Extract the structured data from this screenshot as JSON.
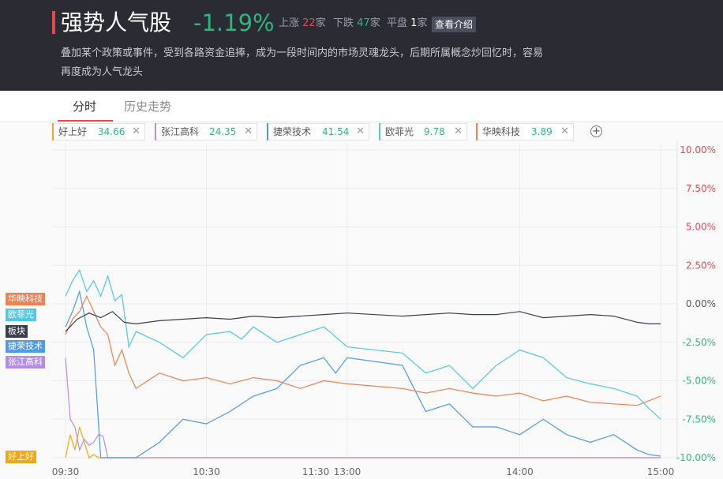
{
  "header": {
    "title": "强势人气股",
    "change": "-1.19%",
    "up_label": "上涨",
    "up_count": "22",
    "down_label": "下跌",
    "down_count": "47",
    "flat_label": "平盘",
    "flat_count": "1",
    "unit": "家",
    "intro_button": "查看介绍",
    "description": "叠加某个政策或事件，受到各路资金追捧，成为一段时间内的市场灵魂龙头，后期所属概念炒回忆时，容易再度成为人气龙头"
  },
  "tabs": [
    {
      "label": "分时",
      "active": true
    },
    {
      "label": "历史走势",
      "active": false
    }
  ],
  "chips": [
    {
      "name": "好上好",
      "value": "34.66",
      "color": "#f2a516"
    },
    {
      "name": "张江高科",
      "value": "24.35",
      "color": "#b48ee6"
    },
    {
      "name": "捷荣技术",
      "value": "41.54",
      "color": "#4a9be8"
    },
    {
      "name": "欧菲光",
      "value": "9.78",
      "color": "#4dc8e6"
    },
    {
      "name": "华映科技",
      "value": "3.89",
      "color": "#ee8051"
    }
  ],
  "add_icon": "plus-circle-icon",
  "close_icon": "close-icon",
  "chart_data": {
    "type": "line",
    "x_ticks": [
      "09:30",
      "10:30",
      "11:30",
      "13:00",
      "14:00",
      "15:00"
    ],
    "y_ticks": [
      "10.00%",
      "7.50%",
      "5.00%",
      "2.50%",
      "0.00%",
      "-2.50%",
      "-5.00%",
      "-7.50%",
      "-10.00%"
    ],
    "ylim": [
      -10,
      10
    ],
    "y_positive_color": "#e5484d",
    "y_negative_color": "#2fb67f",
    "legend_tags": [
      {
        "label": "华映科技",
        "color": "#ee8051",
        "y": 0.0
      },
      {
        "label": "欧菲光",
        "color": "#4dc8e6",
        "y": -1.0
      },
      {
        "label": "板块",
        "color": "#3a3f4b",
        "y": -2.0
      },
      {
        "label": "捷荣技术",
        "color": "#4a9be8",
        "y": -3.0
      },
      {
        "label": "张江高科",
        "color": "#b48ee6",
        "y": -4.0
      },
      {
        "label": "好上好",
        "color": "#f2a516",
        "y": -10.0
      }
    ],
    "series": [
      {
        "name": "板块",
        "color": "#3a3f4b",
        "x": [
          0,
          5,
          10,
          15,
          20,
          25,
          30,
          40,
          50,
          60,
          70,
          80,
          90,
          100,
          110,
          120,
          130,
          140,
          150,
          160,
          170,
          180,
          190,
          200,
          210,
          220,
          230,
          235,
          240
        ],
        "y": [
          -1.8,
          -1.0,
          -0.6,
          -0.9,
          -0.5,
          -1.2,
          -1.3,
          -1.1,
          -1.0,
          -0.9,
          -1.0,
          -0.8,
          -0.9,
          -0.8,
          -0.7,
          -0.6,
          -0.8,
          -0.7,
          -0.6,
          -0.7,
          -0.7,
          -0.5,
          -0.9,
          -0.8,
          -0.7,
          -0.8,
          -1.2,
          -1.3,
          -1.3
        ]
      },
      {
        "name": "欧菲光",
        "color": "#4dc8e6",
        "x": [
          0,
          3,
          6,
          9,
          12,
          15,
          18,
          21,
          24,
          27,
          30,
          40,
          50,
          60,
          70,
          75,
          80,
          90,
          100,
          110,
          120,
          130,
          140,
          150,
          160,
          170,
          180,
          190,
          200,
          210,
          220,
          230,
          235,
          240
        ],
        "y": [
          0.5,
          1.5,
          2.2,
          0.8,
          1.5,
          0.5,
          1.8,
          0.2,
          0.6,
          -2.8,
          -1.8,
          -2.5,
          -3.5,
          -2.0,
          -1.8,
          -2.3,
          -1.5,
          -2.5,
          -2.0,
          -1.5,
          -2.8,
          -3.2,
          -4.5,
          -4.0,
          -5.5,
          -4.0,
          -3.0,
          -3.5,
          -4.8,
          -5.2,
          -5.5,
          -6.0,
          -6.8,
          -7.5
        ]
      },
      {
        "name": "华映科技",
        "color": "#ee8051",
        "x": [
          0,
          3,
          6,
          9,
          12,
          15,
          18,
          21,
          24,
          27,
          30,
          40,
          50,
          60,
          70,
          80,
          90,
          100,
          110,
          120,
          130,
          140,
          150,
          160,
          170,
          180,
          190,
          200,
          210,
          220,
          230,
          240
        ],
        "y": [
          -2.0,
          -1.0,
          -0.5,
          0.5,
          -0.5,
          -1.5,
          -2.0,
          -4.0,
          -3.0,
          -4.5,
          -5.5,
          -4.5,
          -5.0,
          -4.8,
          -5.2,
          -4.8,
          -5.0,
          -5.5,
          -5.0,
          -5.2,
          -5.5,
          -5.8,
          -5.5,
          -5.8,
          -6.0,
          -5.8,
          -6.3,
          -6.0,
          -6.4,
          -6.5,
          -6.6,
          -6.0
        ]
      },
      {
        "name": "捷荣技术",
        "color": "#4a9be8",
        "x": [
          0,
          3,
          6,
          9,
          12,
          15,
          20,
          25,
          30,
          40,
          50,
          60,
          70,
          80,
          90,
          100,
          110,
          115,
          120,
          130,
          135,
          140,
          150,
          160,
          170,
          180,
          190,
          200,
          210,
          220,
          230,
          235,
          240
        ],
        "y": [
          -1.5,
          -0.5,
          0.8,
          -1.5,
          -3.0,
          -10.0,
          -10.0,
          -10.0,
          -10.0,
          -9.0,
          -7.5,
          -7.8,
          -7.0,
          -6.0,
          -5.5,
          -4.0,
          -3.5,
          -4.5,
          -3.5,
          -4.0,
          -5.5,
          -7.0,
          -6.5,
          -8.0,
          -8.0,
          -8.5,
          -7.5,
          -8.5,
          -9.0,
          -8.5,
          -9.5,
          -9.8,
          -9.9
        ]
      },
      {
        "name": "张江高科",
        "color": "#b48ee6",
        "x": [
          0,
          2,
          4,
          6,
          8,
          10,
          12,
          14,
          16,
          18,
          20,
          30,
          240
        ],
        "y": [
          -3.5,
          -7.5,
          -8.0,
          -9.5,
          -8.8,
          -9.2,
          -9.0,
          -8.5,
          -8.6,
          -10.0,
          -10.0,
          -10.0,
          -10.0
        ]
      },
      {
        "name": "好上好",
        "color": "#f2a516",
        "x": [
          0,
          2,
          4,
          6,
          8,
          10,
          12,
          14,
          16,
          18,
          20,
          30,
          240
        ],
        "y": [
          -10.0,
          -8.5,
          -9.5,
          -8.0,
          -9.0,
          -10.0,
          -9.8,
          -10.0,
          -10.0,
          -10.0,
          -10.0,
          -10.0,
          -10.0
        ]
      }
    ]
  }
}
